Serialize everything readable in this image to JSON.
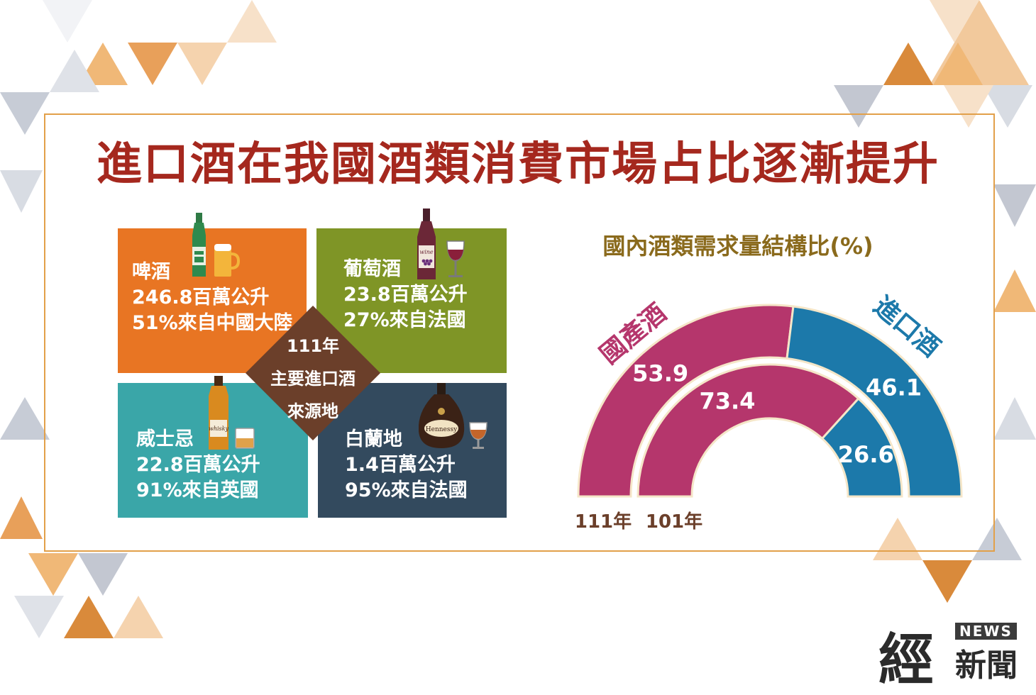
{
  "title": "進口酒在我國酒類消費市場占比逐漸提升",
  "colors": {
    "title": "#a5281e",
    "beer": "#e87523",
    "wine": "#7f9526",
    "whisky": "#3aa6a8",
    "brandy": "#334a5e",
    "center": "#6b3f2a",
    "domestic": "#b5366c",
    "imported": "#1c79aa",
    "chart_title": "#8a6a1c",
    "year_label": "#6b3f2a"
  },
  "center_label": {
    "line1": "111年",
    "line2": "主要進口酒",
    "line3": "來源地"
  },
  "tiles": [
    {
      "name": "啤酒",
      "volume": "246.8百萬公升",
      "source": "51%來自中國大陸",
      "icon": "beer-bottle-icon"
    },
    {
      "name": "葡萄酒",
      "volume": "23.8百萬公升",
      "source": "27%來自法國",
      "icon": "wine-bottle-icon"
    },
    {
      "name": "威士忌",
      "volume": "22.8百萬公升",
      "source": "91%來自英國",
      "icon": "whisky-bottle-icon"
    },
    {
      "name": "白蘭地",
      "volume": "1.4百萬公升",
      "source": "95%來自法國",
      "icon": "brandy-bottle-icon"
    }
  ],
  "icon_text": {
    "wine": "wine",
    "whisky": "whisky",
    "brandy": "Hennessy"
  },
  "chart_data": {
    "type": "pie",
    "title": "國內酒類需求量結構比(%)",
    "series_labels": [
      "國產酒",
      "進口酒"
    ],
    "rings": [
      {
        "year": "111年",
        "values": [
          53.9,
          46.1
        ],
        "labels": [
          "53.9",
          "46.1"
        ]
      },
      {
        "year": "101年",
        "values": [
          73.4,
          26.6
        ],
        "labels": [
          "73.4",
          "26.6"
        ]
      }
    ]
  },
  "logo": {
    "big": "經",
    "news": "NEWS",
    "small": "新聞"
  }
}
